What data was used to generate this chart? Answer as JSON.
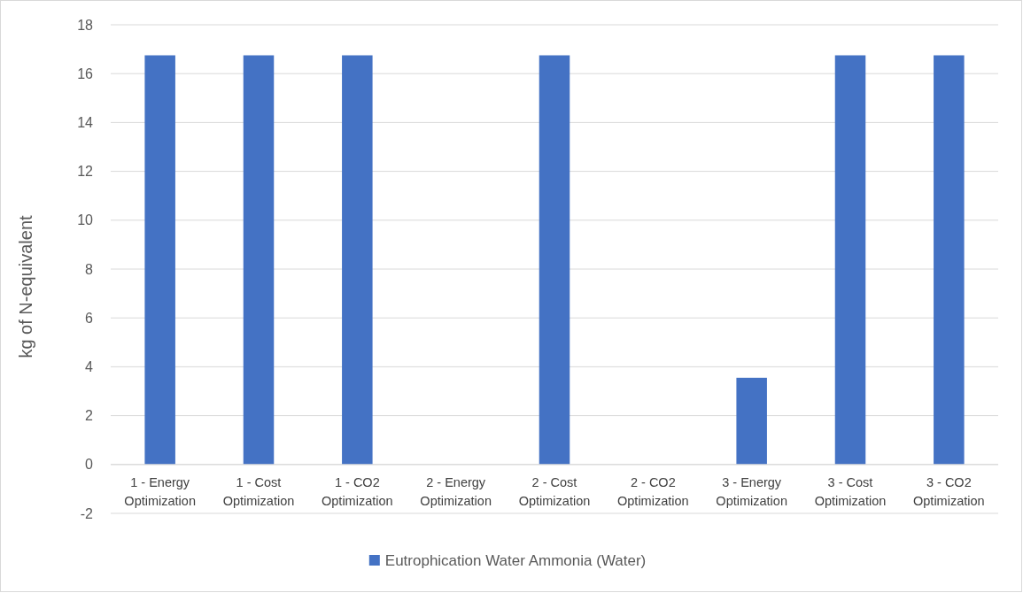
{
  "chart_data": {
    "type": "bar",
    "ylabel": "kg of N-equivalent",
    "categories": [
      "1 - Energy Optimization",
      "1 - Cost Optimization",
      "1 - CO2 Optimization",
      "2 - Energy Optimization",
      "2 - Cost Optimization",
      "2 - CO2 Optimization",
      "3 - Energy Optimization",
      "3 - Cost Optimization",
      "3 - CO2 Optimization"
    ],
    "series": [
      {
        "name": "Eutrophication Water Ammonia (Water)",
        "color": "#4472c4",
        "values": [
          16.75,
          16.75,
          16.75,
          0,
          16.75,
          0,
          3.55,
          16.75,
          16.75
        ]
      }
    ],
    "ylim": [
      -2,
      18
    ],
    "yticks": [
      -2,
      0,
      2,
      4,
      6,
      8,
      10,
      12,
      14,
      16,
      18
    ],
    "grid": "y",
    "legend": "bottom"
  }
}
